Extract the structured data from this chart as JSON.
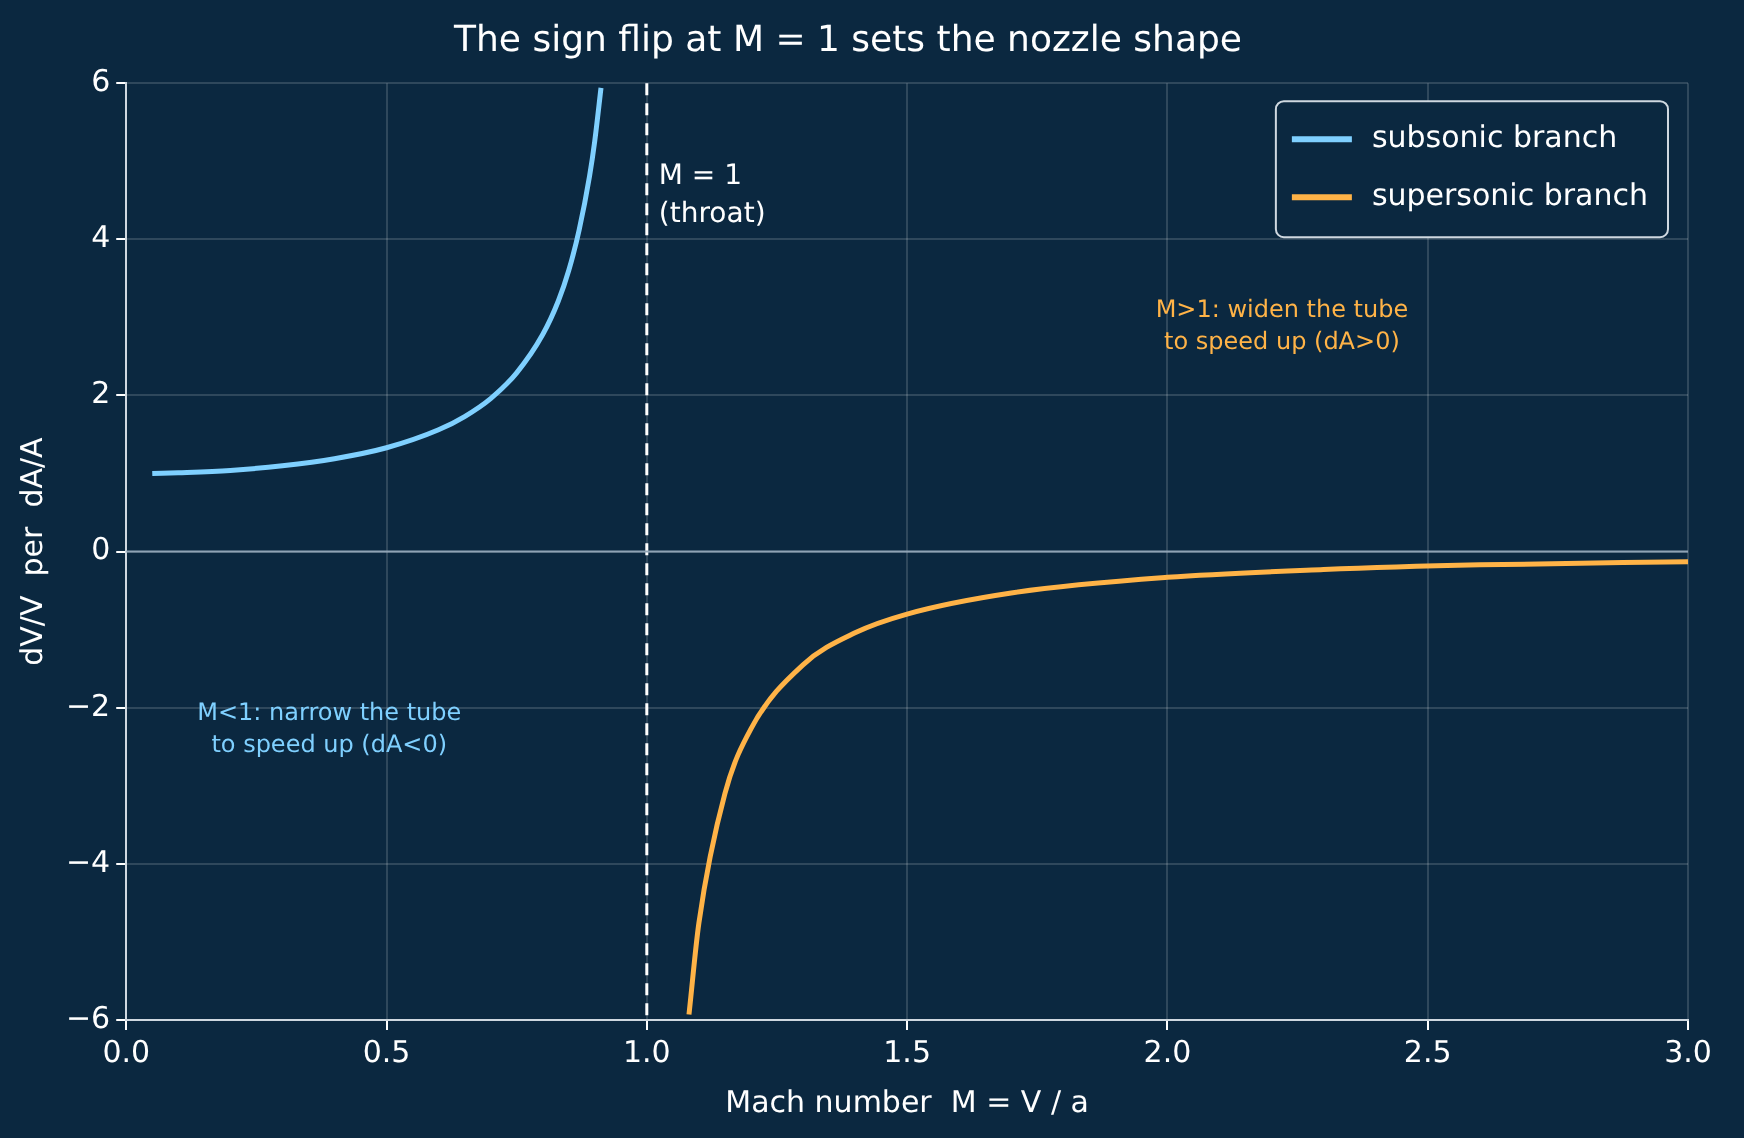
{
  "chart_data": {
    "type": "line",
    "title": "The sign flip at M = 1 sets the nozzle shape",
    "xlabel": "Mach number  M = V / a",
    "ylabel": "dV/V  per  dA/A",
    "series": [
      {
        "name": "subsonic branch",
        "color": "#7fd0ff",
        "x": [
          0.05,
          0.1,
          0.2,
          0.3,
          0.4,
          0.5,
          0.6,
          0.65,
          0.7,
          0.75,
          0.8,
          0.83,
          0.85,
          0.87,
          0.89,
          0.9,
          0.912
        ],
        "values": [
          1.0,
          1.01,
          1.04,
          1.1,
          1.19,
          1.33,
          1.56,
          1.73,
          1.96,
          2.29,
          2.78,
          3.21,
          3.6,
          4.12,
          4.81,
          5.26,
          5.94
        ]
      },
      {
        "name": "supersonic branch",
        "color": "#ffb347",
        "x": [
          1.081,
          1.1,
          1.15,
          1.2,
          1.3,
          1.4,
          1.5,
          1.7,
          2.0,
          2.3,
          2.6,
          3.0
        ],
        "values": [
          -5.93,
          -4.76,
          -3.1,
          -2.27,
          -1.45,
          -1.04,
          -0.8,
          -0.53,
          -0.33,
          -0.23,
          -0.17,
          -0.13
        ]
      }
    ],
    "xlim": [
      0,
      3
    ],
    "xticks": [
      {
        "value": 0,
        "label": "0.0"
      },
      {
        "value": 0.5,
        "label": "0.5"
      },
      {
        "value": 1,
        "label": "1.0"
      },
      {
        "value": 1.5,
        "label": "1.5"
      },
      {
        "value": 2,
        "label": "2.0"
      },
      {
        "value": 2.5,
        "label": "2.5"
      },
      {
        "value": 3,
        "label": "3.0"
      }
    ],
    "ylim": [
      -6,
      6
    ],
    "yticks": [
      {
        "value": -6,
        "label": "−6"
      },
      {
        "value": -4,
        "label": "−4"
      },
      {
        "value": -2,
        "label": "−2"
      },
      0,
      2,
      4,
      6
    ],
    "ref_lines": [
      {
        "axis": "x",
        "value": 1,
        "label": "M = 1\n(throat)",
        "color": "#ffffff",
        "line_style": "dashed"
      },
      {
        "axis": "y",
        "value": 0,
        "color": "#8fa3b5",
        "line_style": "solid"
      }
    ],
    "annotations": [
      "M<1: narrow the tube\nto speed up (dA<0)",
      "M>1: widen the tube\nto speed up (dA>0)"
    ],
    "grid": true,
    "legend": "top right",
    "marker": "none",
    "line_style": "solid"
  }
}
